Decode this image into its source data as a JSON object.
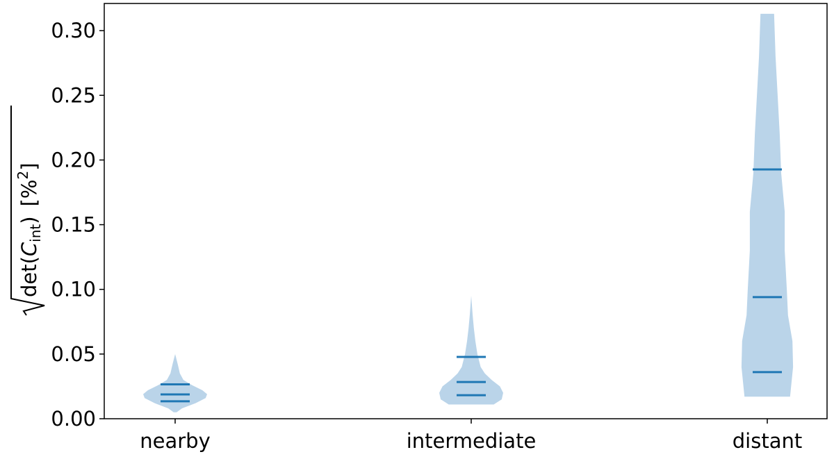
{
  "chart_data": {
    "type": "violin",
    "categories": [
      "nearby",
      "intermediate",
      "distant"
    ],
    "ylabel": {
      "prefix": "det(",
      "symbol": "C",
      "subscript": "int",
      "suffix": ")",
      "unit": "[%",
      "superscript": "2",
      "close": "]"
    },
    "fill_color": "#bad4e9",
    "line_color": "#1f77b4",
    "ylim": [
      0,
      0.321
    ],
    "yticks": [
      {
        "value": 0,
        "label": "0.00"
      },
      {
        "value": 0.05,
        "label": "0.05"
      },
      {
        "value": 0.1,
        "label": "0.10"
      },
      {
        "value": 0.15,
        "label": "0.15"
      },
      {
        "value": 0.2,
        "label": "0.20"
      },
      {
        "value": 0.25,
        "label": "0.25"
      },
      {
        "value": 0.3,
        "label": "0.30"
      }
    ],
    "violins": [
      {
        "quantiles": [
          0.0135,
          0.0188,
          0.0266
        ],
        "profile_y": [
          0.005,
          0.008,
          0.012,
          0.016,
          0.019,
          0.022,
          0.026,
          0.03,
          0.035,
          0.042,
          0.05
        ],
        "profile_w": [
          0.005,
          0.023,
          0.069,
          0.103,
          0.108,
          0.092,
          0.057,
          0.028,
          0.016,
          0.009,
          0
        ]
      },
      {
        "quantiles": [
          0.0182,
          0.0284,
          0.0478
        ],
        "profile_y": [
          0.011,
          0.015,
          0.02,
          0.025,
          0.03,
          0.035,
          0.04,
          0.05,
          0.06,
          0.07,
          0.08,
          0.095
        ],
        "profile_w": [
          0.076,
          0.103,
          0.108,
          0.097,
          0.069,
          0.046,
          0.032,
          0.021,
          0.014,
          0.009,
          0.005,
          0
        ]
      },
      {
        "quantiles": [
          0.036,
          0.094,
          0.1927
        ],
        "profile_y": [
          0.017,
          0.04,
          0.06,
          0.08,
          0.1,
          0.13,
          0.16,
          0.19,
          0.22,
          0.25,
          0.28,
          0.313
        ],
        "profile_w": [
          0.077,
          0.087,
          0.085,
          0.07,
          0.066,
          0.059,
          0.059,
          0.047,
          0.042,
          0.035,
          0.028,
          0.023
        ]
      }
    ]
  }
}
